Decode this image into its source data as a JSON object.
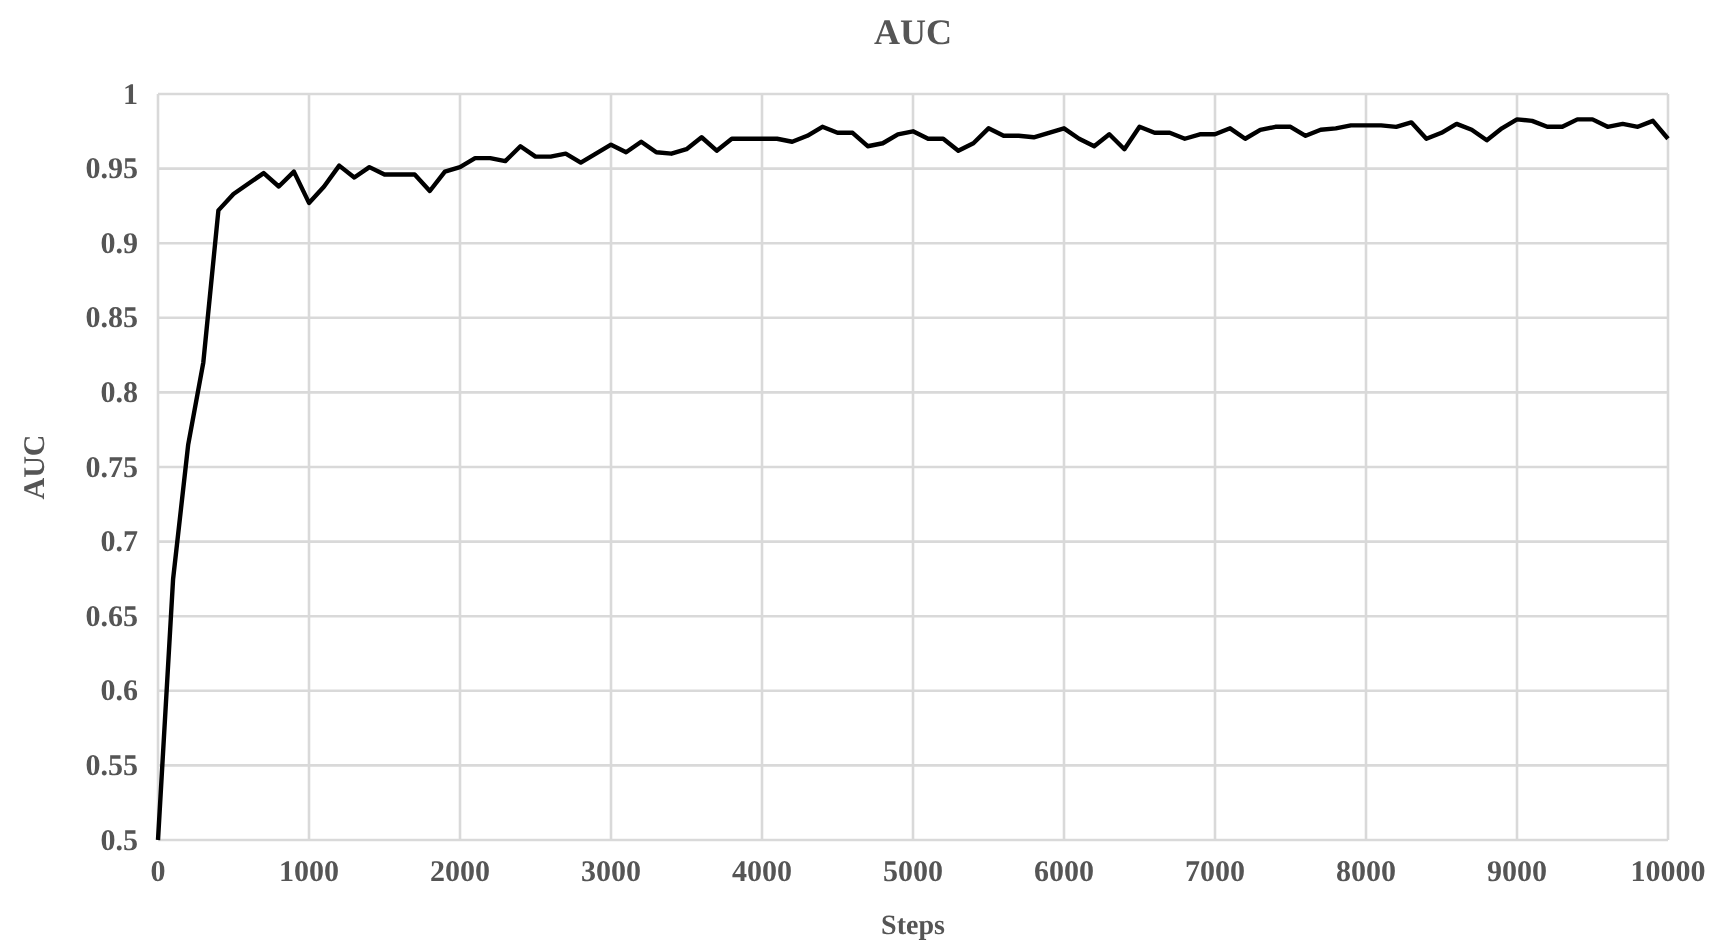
{
  "chart_data": {
    "type": "line",
    "title": "AUC",
    "xlabel": "Steps",
    "ylabel": "AUC",
    "x": [
      0,
      100,
      200,
      300,
      400,
      500,
      600,
      700,
      800,
      900,
      1000,
      1100,
      1200,
      1300,
      1400,
      1500,
      1600,
      1700,
      1800,
      1900,
      2000,
      2100,
      2200,
      2300,
      2400,
      2500,
      2600,
      2700,
      2800,
      2900,
      3000,
      3100,
      3200,
      3300,
      3400,
      3500,
      3600,
      3700,
      3800,
      3900,
      4000,
      4100,
      4200,
      4300,
      4400,
      4500,
      4600,
      4700,
      4800,
      4900,
      5000,
      5100,
      5200,
      5300,
      5400,
      5500,
      5600,
      5700,
      5800,
      5900,
      6000,
      6100,
      6200,
      6300,
      6400,
      6500,
      6600,
      6700,
      6800,
      6900,
      7000,
      7100,
      7200,
      7300,
      7400,
      7500,
      7600,
      7700,
      7800,
      7900,
      8000,
      8100,
      8200,
      8300,
      8400,
      8500,
      8600,
      8700,
      8800,
      8900,
      9000,
      9100,
      9200,
      9300,
      9400,
      9500,
      9600,
      9700,
      9800,
      9900,
      10000
    ],
    "series": [
      {
        "color": "#000000",
        "values": [
          0.5,
          0.675,
          0.765,
          0.82,
          0.922,
          0.933,
          0.94,
          0.947,
          0.938,
          0.948,
          0.927,
          0.938,
          0.952,
          0.944,
          0.951,
          0.946,
          0.946,
          0.946,
          0.935,
          0.948,
          0.951,
          0.957,
          0.957,
          0.955,
          0.965,
          0.958,
          0.958,
          0.96,
          0.954,
          0.96,
          0.966,
          0.961,
          0.968,
          0.961,
          0.96,
          0.963,
          0.971,
          0.962,
          0.97,
          0.97,
          0.97,
          0.97,
          0.968,
          0.972,
          0.978,
          0.974,
          0.974,
          0.965,
          0.967,
          0.973,
          0.975,
          0.97,
          0.97,
          0.962,
          0.967,
          0.977,
          0.972,
          0.972,
          0.971,
          0.974,
          0.977,
          0.97,
          0.965,
          0.973,
          0.963,
          0.978,
          0.974,
          0.974,
          0.97,
          0.973,
          0.973,
          0.977,
          0.97,
          0.976,
          0.978,
          0.978,
          0.972,
          0.976,
          0.977,
          0.979,
          0.979,
          0.979,
          0.978,
          0.981,
          0.97,
          0.974,
          0.98,
          0.976,
          0.969,
          0.977,
          0.983,
          0.982,
          0.978,
          0.978,
          0.983,
          0.983,
          0.978,
          0.98,
          0.978,
          0.982,
          0.97
        ]
      }
    ],
    "xlim": [
      0,
      10000
    ],
    "xticks": [
      0,
      1000,
      2000,
      3000,
      4000,
      5000,
      6000,
      7000,
      8000,
      9000,
      10000
    ],
    "ylim": [
      0.5,
      1
    ],
    "yticks": [
      0.5,
      0.55,
      0.6,
      0.65,
      0.7,
      0.75,
      0.8,
      0.85,
      0.9,
      0.95,
      1
    ],
    "grid": true,
    "line_style": "solid"
  }
}
